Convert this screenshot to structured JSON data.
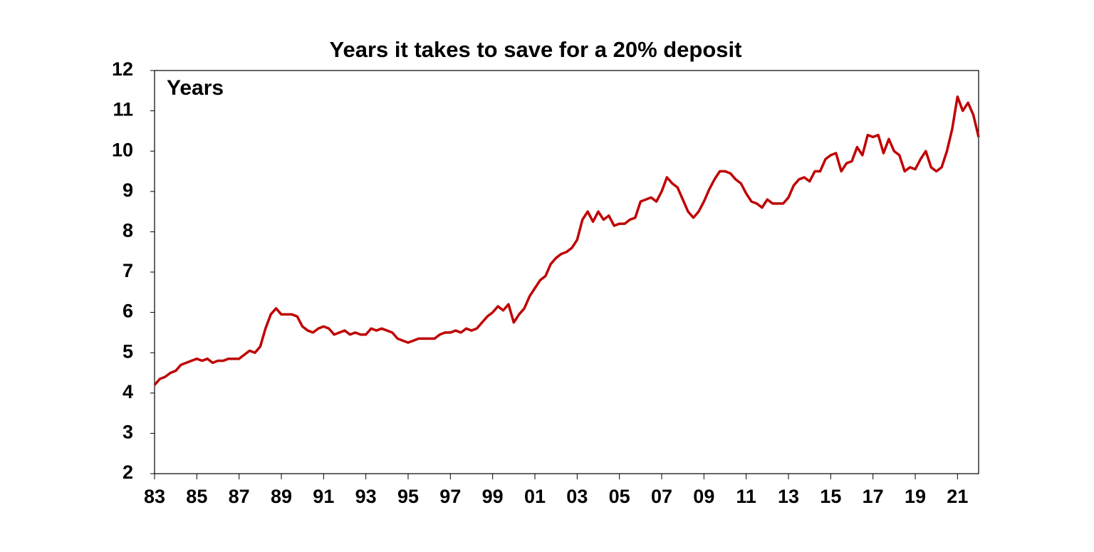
{
  "chart_data": {
    "type": "line",
    "title": "Years it takes to save for a 20% deposit",
    "y_label": "Years",
    "x": [
      1983,
      1983.25,
      1983.5,
      1983.75,
      1984,
      1984.25,
      1984.5,
      1984.75,
      1985,
      1985.25,
      1985.5,
      1985.75,
      1986,
      1986.25,
      1986.5,
      1986.75,
      1987,
      1987.25,
      1987.5,
      1987.75,
      1988,
      1988.25,
      1988.5,
      1988.75,
      1989,
      1989.25,
      1989.5,
      1989.75,
      1990,
      1990.25,
      1990.5,
      1990.75,
      1991,
      1991.25,
      1991.5,
      1991.75,
      1992,
      1992.25,
      1992.5,
      1992.75,
      1993,
      1993.25,
      1993.5,
      1993.75,
      1994,
      1994.25,
      1994.5,
      1994.75,
      1995,
      1995.25,
      1995.5,
      1995.75,
      1996,
      1996.25,
      1996.5,
      1996.75,
      1997,
      1997.25,
      1997.5,
      1997.75,
      1998,
      1998.25,
      1998.5,
      1998.75,
      1999,
      1999.25,
      1999.5,
      1999.75,
      2000,
      2000.25,
      2000.5,
      2000.75,
      2001,
      2001.25,
      2001.5,
      2001.75,
      2002,
      2002.25,
      2002.5,
      2002.75,
      2003,
      2003.25,
      2003.5,
      2003.75,
      2004,
      2004.25,
      2004.5,
      2004.75,
      2005,
      2005.25,
      2005.5,
      2005.75,
      2006,
      2006.25,
      2006.5,
      2006.75,
      2007,
      2007.25,
      2007.5,
      2007.75,
      2008,
      2008.25,
      2008.5,
      2008.75,
      2009,
      2009.25,
      2009.5,
      2009.75,
      2010,
      2010.25,
      2010.5,
      2010.75,
      2011,
      2011.25,
      2011.5,
      2011.75,
      2012,
      2012.25,
      2012.5,
      2012.75,
      2013,
      2013.25,
      2013.5,
      2013.75,
      2014,
      2014.25,
      2014.5,
      2014.75,
      2015,
      2015.25,
      2015.5,
      2015.75,
      2016,
      2016.25,
      2016.5,
      2016.75,
      2017,
      2017.25,
      2017.5,
      2017.75,
      2018,
      2018.25,
      2018.5,
      2018.75,
      2019,
      2019.25,
      2019.5,
      2019.75,
      2020,
      2020.25,
      2020.5,
      2020.75,
      2021,
      2021.25,
      2021.5,
      2021.75,
      2022
    ],
    "series": [
      {
        "name": "Years",
        "color": "#c00000",
        "values": [
          4.2,
          4.35,
          4.4,
          4.5,
          4.55,
          4.7,
          4.75,
          4.8,
          4.85,
          4.8,
          4.85,
          4.75,
          4.8,
          4.8,
          4.85,
          4.85,
          4.85,
          4.95,
          5.05,
          5.0,
          5.15,
          5.6,
          5.95,
          6.1,
          5.95,
          5.95,
          5.95,
          5.9,
          5.65,
          5.55,
          5.5,
          5.6,
          5.65,
          5.6,
          5.45,
          5.5,
          5.55,
          5.45,
          5.5,
          5.45,
          5.45,
          5.6,
          5.55,
          5.6,
          5.55,
          5.5,
          5.35,
          5.3,
          5.25,
          5.3,
          5.35,
          5.35,
          5.35,
          5.35,
          5.45,
          5.5,
          5.5,
          5.55,
          5.5,
          5.6,
          5.55,
          5.6,
          5.75,
          5.9,
          6.0,
          6.15,
          6.05,
          6.2,
          5.75,
          5.95,
          6.1,
          6.4,
          6.6,
          6.8,
          6.9,
          7.2,
          7.35,
          7.45,
          7.5,
          7.6,
          7.8,
          8.3,
          8.5,
          8.25,
          8.5,
          8.3,
          8.4,
          8.15,
          8.2,
          8.2,
          8.3,
          8.35,
          8.75,
          8.8,
          8.85,
          8.75,
          9.0,
          9.35,
          9.2,
          9.1,
          8.8,
          8.5,
          8.35,
          8.5,
          8.75,
          9.05,
          9.3,
          9.5,
          9.5,
          9.45,
          9.3,
          9.2,
          8.95,
          8.75,
          8.7,
          8.6,
          8.8,
          8.7,
          8.7,
          8.7,
          8.85,
          9.15,
          9.3,
          9.35,
          9.25,
          9.5,
          9.5,
          9.8,
          9.9,
          9.95,
          9.5,
          9.7,
          9.75,
          10.1,
          9.9,
          10.4,
          10.35,
          10.4,
          9.95,
          10.3,
          10.0,
          9.9,
          9.5,
          9.6,
          9.55,
          9.8,
          10.0,
          9.6,
          9.5,
          9.6,
          10.0,
          10.55,
          11.35,
          11.0,
          11.2,
          10.9,
          10.35
        ]
      }
    ],
    "xlim": [
      1983,
      2022
    ],
    "xticks": [
      {
        "value": 1983,
        "label": "83"
      },
      {
        "value": 1985,
        "label": "85"
      },
      {
        "value": 1987,
        "label": "87"
      },
      {
        "value": 1989,
        "label": "89"
      },
      {
        "value": 1991,
        "label": "91"
      },
      {
        "value": 1993,
        "label": "93"
      },
      {
        "value": 1995,
        "label": "95"
      },
      {
        "value": 1997,
        "label": "97"
      },
      {
        "value": 1999,
        "label": "99"
      },
      {
        "value": 2001,
        "label": "01"
      },
      {
        "value": 2003,
        "label": "03"
      },
      {
        "value": 2005,
        "label": "05"
      },
      {
        "value": 2007,
        "label": "07"
      },
      {
        "value": 2009,
        "label": "09"
      },
      {
        "value": 2011,
        "label": "11"
      },
      {
        "value": 2013,
        "label": "13"
      },
      {
        "value": 2015,
        "label": "15"
      },
      {
        "value": 2017,
        "label": "17"
      },
      {
        "value": 2019,
        "label": "19"
      },
      {
        "value": 2021,
        "label": "21"
      }
    ],
    "ylim": [
      2,
      12
    ],
    "yticks": [
      2,
      3,
      4,
      5,
      6,
      7,
      8,
      9,
      10,
      11,
      12
    ],
    "grid": false
  }
}
